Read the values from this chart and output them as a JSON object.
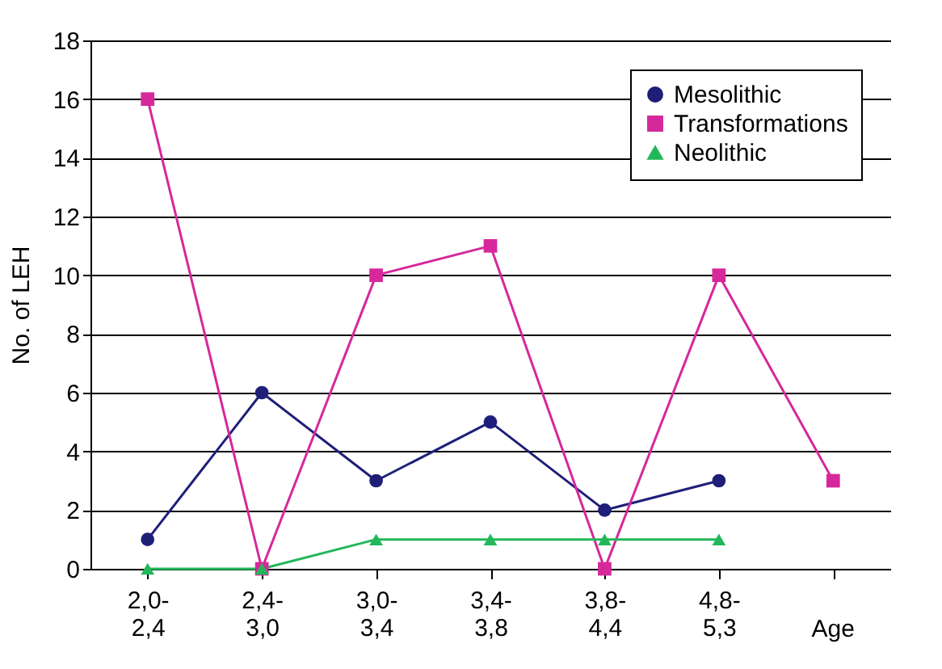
{
  "chart_data": {
    "type": "line",
    "xlabel": "Age",
    "ylabel": "No. of LEH",
    "categories": [
      "2,0-\n2,4",
      "2,4-\n3,0",
      "3,0-\n3,4",
      "3,4-\n3,8",
      "3,8-\n4,4",
      "4,8-\n5,3",
      null
    ],
    "series": [
      {
        "name": "Mesolithic",
        "color": "#1f1f7a",
        "marker": "circle",
        "values": [
          1,
          6,
          3,
          5,
          2,
          3,
          null
        ]
      },
      {
        "name": "Transformations",
        "color": "#d6289a",
        "marker": "square",
        "values": [
          16,
          0,
          10,
          11,
          0,
          10,
          3
        ]
      },
      {
        "name": "Neolithic",
        "color": "#22b85a",
        "marker": "triangle",
        "values": [
          0,
          0,
          1,
          1,
          1,
          1,
          null
        ]
      }
    ],
    "ylim": [
      0,
      18
    ],
    "yticks": [
      0,
      2,
      4,
      6,
      8,
      10,
      12,
      14,
      16,
      18
    ],
    "grid": "y",
    "legend": "top right",
    "line_style": "solid"
  }
}
